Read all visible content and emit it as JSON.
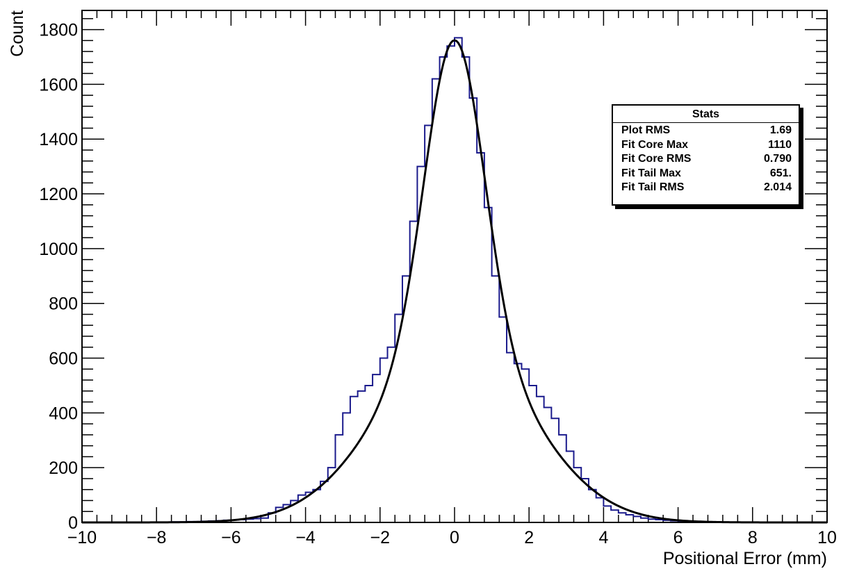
{
  "chart_data": {
    "type": "histogram",
    "xlabel": "Positional Error (mm)",
    "ylabel": "Count",
    "xlim": [
      -10,
      10
    ],
    "ylim": [
      0,
      1870
    ],
    "x_ticks": [
      "−10",
      "−8",
      "−6",
      "−4",
      "−2",
      "0",
      "2",
      "4",
      "6",
      "8",
      "10"
    ],
    "x_tick_values": [
      -10,
      -8,
      -6,
      -4,
      -2,
      0,
      2,
      4,
      6,
      8,
      10
    ],
    "y_ticks": [
      "0",
      "200",
      "400",
      "600",
      "800",
      "1000",
      "1200",
      "1400",
      "1600",
      "1800"
    ],
    "y_tick_values": [
      0,
      200,
      400,
      600,
      800,
      1000,
      1200,
      1400,
      1600,
      1800
    ],
    "histogram": {
      "color": "#1a1a8c",
      "bin_width": 0.2,
      "centers": [
        -9.9,
        -9.7,
        -9.5,
        -9.3,
        -9.1,
        -8.9,
        -8.7,
        -8.5,
        -8.3,
        -8.1,
        -7.9,
        -7.7,
        -7.5,
        -7.3,
        -7.1,
        -6.9,
        -6.7,
        -6.5,
        -6.3,
        -6.1,
        -5.9,
        -5.7,
        -5.5,
        -5.3,
        -5.1,
        -4.9,
        -4.7,
        -4.5,
        -4.3,
        -4.1,
        -3.9,
        -3.7,
        -3.5,
        -3.3,
        -3.1,
        -2.9,
        -2.7,
        -2.5,
        -2.3,
        -2.1,
        -1.9,
        -1.7,
        -1.5,
        -1.3,
        -1.1,
        -0.9,
        -0.7,
        -0.5,
        -0.3,
        -0.1,
        0.1,
        0.3,
        0.5,
        0.7,
        0.9,
        1.1,
        1.3,
        1.5,
        1.7,
        1.9,
        2.1,
        2.3,
        2.5,
        2.7,
        2.9,
        3.1,
        3.3,
        3.5,
        3.7,
        3.9,
        4.1,
        4.3,
        4.5,
        4.7,
        4.9,
        5.1,
        5.3,
        5.5,
        5.7,
        5.9,
        6.1,
        6.3,
        6.5,
        6.7,
        6.9,
        7.1,
        7.3,
        7.5,
        7.7,
        7.9,
        8.1,
        8.3,
        8.5,
        8.7,
        8.9,
        9.1,
        9.3,
        9.5,
        9.7,
        9.9
      ],
      "counts": [
        0,
        0,
        0,
        0,
        0,
        0,
        0,
        0,
        0,
        0,
        1,
        1,
        2,
        2,
        3,
        3,
        4,
        5,
        6,
        8,
        9,
        10,
        12,
        14,
        16,
        35,
        55,
        65,
        80,
        100,
        110,
        120,
        150,
        200,
        320,
        400,
        460,
        480,
        500,
        540,
        600,
        640,
        760,
        900,
        1100,
        1300,
        1450,
        1620,
        1700,
        1740,
        1770,
        1700,
        1550,
        1350,
        1150,
        900,
        750,
        620,
        580,
        560,
        500,
        460,
        420,
        380,
        320,
        260,
        200,
        160,
        120,
        90,
        60,
        45,
        35,
        28,
        22,
        16,
        12,
        10,
        8,
        6,
        4,
        3,
        2,
        2,
        1,
        1,
        1,
        0,
        0,
        0,
        0,
        0,
        0,
        0,
        0,
        0,
        0,
        0,
        0,
        0
      ]
    },
    "fit": {
      "color": "#000000",
      "core_max": 1110,
      "core_rms": 0.79,
      "tail_max": 651,
      "tail_rms": 2.014
    }
  },
  "stats": {
    "title": "Stats",
    "rows": [
      {
        "label": "Plot RMS",
        "value": "1.69"
      },
      {
        "label": "Fit Core Max",
        "value": "1110"
      },
      {
        "label": "Fit Core RMS",
        "value": "0.790"
      },
      {
        "label": "Fit Tail Max",
        "value": "651."
      },
      {
        "label": "Fit Tail RMS",
        "value": "2.014"
      }
    ]
  }
}
